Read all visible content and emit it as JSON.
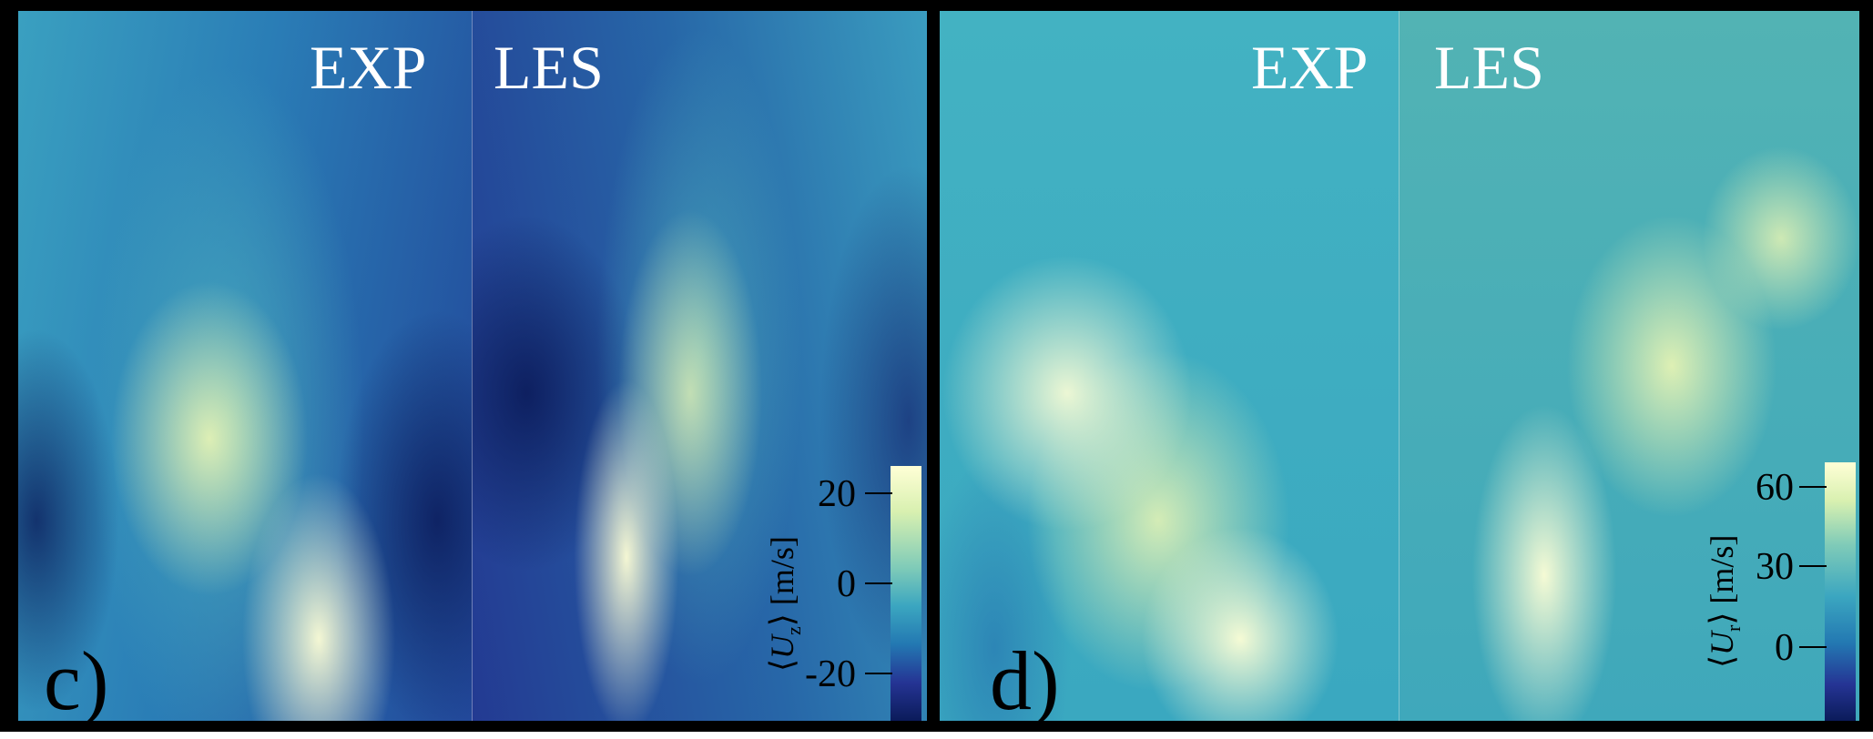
{
  "panels": [
    {
      "label": "c)",
      "left_title": "EXP",
      "right_title": "LES",
      "colorbar": {
        "quantity": "U",
        "subscript": "z",
        "unit": "[m/s]",
        "ticks": [
          "20",
          "0",
          "-20"
        ]
      }
    },
    {
      "label": "d)",
      "left_title": "EXP",
      "right_title": "LES",
      "colorbar": {
        "quantity": "U",
        "subscript": "r",
        "unit": "[m/s]",
        "ticks": [
          "60",
          "30",
          "0"
        ]
      }
    }
  ],
  "colormap": [
    "#ffffd6",
    "#eef7b4",
    "#7fcbb8",
    "#3ba6c0",
    "#2378b2",
    "#253494",
    "#0b1b5a"
  ]
}
